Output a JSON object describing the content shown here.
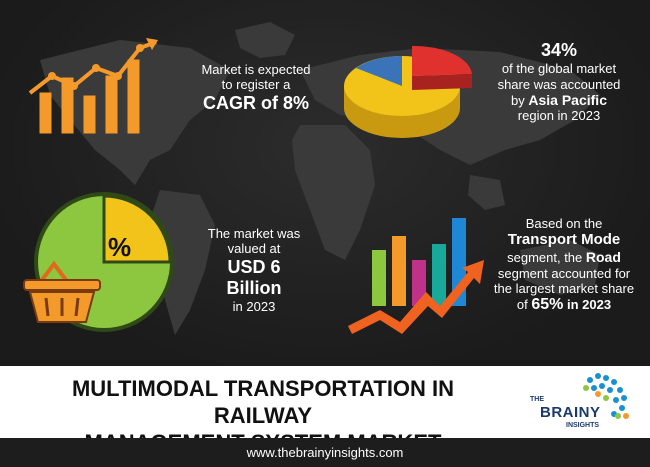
{
  "stats": {
    "cagr": {
      "line1": "Market is expected",
      "line2": "to register a",
      "value": "CAGR of 8%"
    },
    "region": {
      "share": "34%",
      "line1": "of the global market",
      "line2": "share was accounted",
      "by_prefix": "by",
      "region_name": "Asia Pacific",
      "line4": "region in 2023"
    },
    "valuation": {
      "line1": "The market was",
      "line2": "valued at",
      "value_line1": "USD 6",
      "value_line2": "Billion",
      "year": "in 2023"
    },
    "segment": {
      "line1": "Based on the",
      "segment_name": "Transport Mode",
      "line3_prefix": "segment, the",
      "road": "Road",
      "line4": "segment accounted for",
      "line5": "the largest market share",
      "of": "of",
      "share": "65%",
      "year": "in 2023"
    }
  },
  "icons": {
    "percent_symbol": "%",
    "colors": {
      "orange": "#f39a2b",
      "yellow": "#f2c319",
      "red": "#e0312f",
      "blue": "#3a73b8",
      "green": "#8dc63f",
      "teal": "#18a99a",
      "magenta": "#c0318a",
      "blue_bar": "#1e88d6"
    }
  },
  "banner": {
    "title_line1": "MULTIMODAL TRANSPORTATION IN RAILWAY",
    "title_line2": "MANAGEMENT SYSTEM MARKET",
    "logo_line1": "THE",
    "logo_line2": "BRAINY",
    "logo_line3": "INSIGHTS"
  },
  "footer": {
    "url": "www.thebrainyinsights.com"
  }
}
